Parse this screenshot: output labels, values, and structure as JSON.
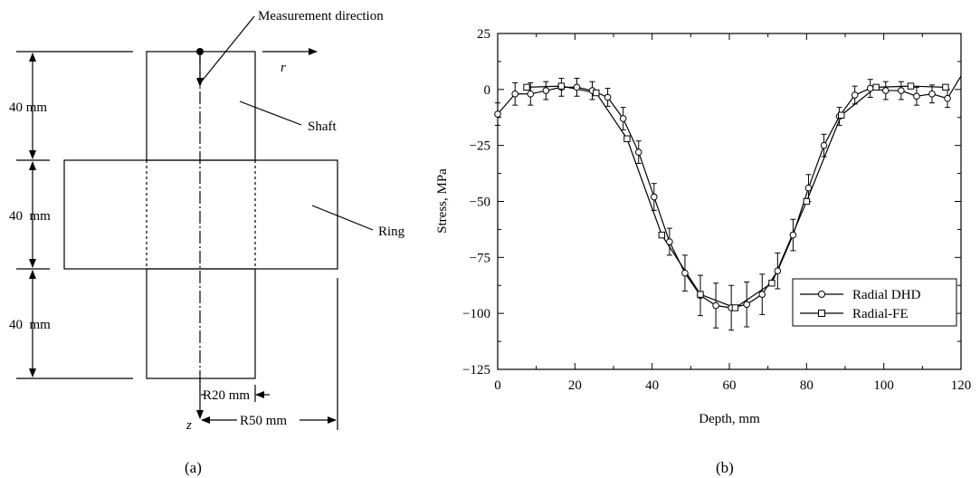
{
  "figure": {
    "caption_a": "(a)",
    "caption_b": "(b)"
  },
  "diagram": {
    "measurement_direction_label": "Measurement direction",
    "r_axis_label": "r",
    "z_axis_label": "z",
    "shaft_label": "Shaft",
    "ring_label": "Ring",
    "dim_top": "40 mm",
    "dim_middle": "40  mm",
    "dim_bottom": "40  mm",
    "r20_label": "R20 mm",
    "r50_label": "R50 mm"
  },
  "chart_data": {
    "type": "line",
    "title": "",
    "xlabel": "Depth, mm",
    "ylabel": "Stress, MPa",
    "xlim": [
      0,
      120
    ],
    "ylim": [
      -125,
      25
    ],
    "xticks": [
      0,
      20,
      40,
      60,
      80,
      100,
      120
    ],
    "yticks": [
      25,
      0,
      -25,
      -50,
      -75,
      -100,
      -125
    ],
    "legend_position": "bottom-right",
    "grid": false,
    "series": [
      {
        "name": "Radial DHD",
        "marker": "circle",
        "x": [
          0,
          4.5,
          8.5,
          12.5,
          16.5,
          20.5,
          24.5,
          28.5,
          32.5,
          36.5,
          40.5,
          44.5,
          48.5,
          52.5,
          56.5,
          60.5,
          64.5,
          68.5,
          72.5,
          76.5,
          80.5,
          84.5,
          88.5,
          92.5,
          96.5,
          100.5,
          104.5,
          108.5,
          112.5,
          116.5,
          120
        ],
        "y": [
          -11,
          -2,
          -2,
          -0.5,
          1,
          1,
          -0.5,
          -3.5,
          -13,
          -28,
          -48,
          -68,
          -82,
          -92,
          -96.5,
          -97.5,
          -96,
          -91.5,
          -81,
          -65,
          -44,
          -25,
          -12,
          -2.5,
          0.5,
          -0.5,
          -0.5,
          -3,
          -2,
          -4,
          6
        ],
        "err": [
          5,
          5,
          5,
          4,
          4,
          4,
          4,
          4,
          5,
          5,
          6,
          6,
          8,
          9,
          10,
          10,
          10,
          9,
          8,
          7,
          6,
          5,
          4,
          4,
          4,
          4,
          4,
          4,
          4,
          4,
          0
        ]
      },
      {
        "name": "Radial-FE",
        "marker": "square",
        "x": [
          7.5,
          16.5,
          25.5,
          33.5,
          42.5,
          52.5,
          61.5,
          71,
          80,
          89,
          98,
          107,
          116
        ],
        "y": [
          1,
          1.5,
          -1.5,
          -22,
          -65,
          -91.5,
          -97.5,
          -86.5,
          -50,
          -11.5,
          1,
          1.5,
          1
        ],
        "err": [
          0,
          0,
          0,
          0,
          0,
          0,
          0,
          0,
          0,
          0,
          0,
          0,
          0
        ]
      }
    ]
  }
}
